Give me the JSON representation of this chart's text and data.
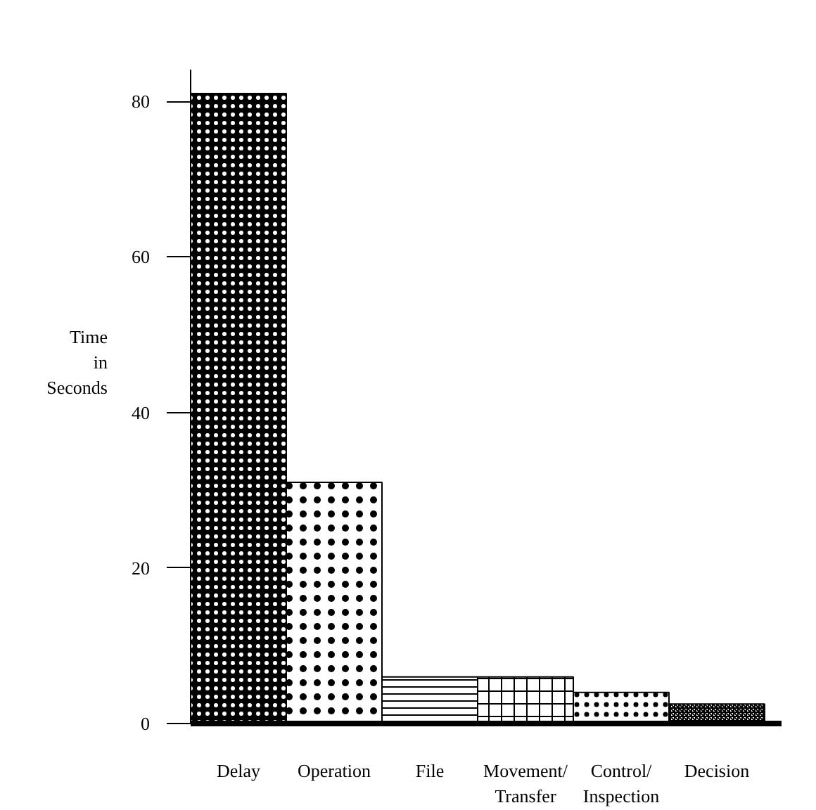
{
  "chart_data": {
    "type": "bar",
    "categories": [
      "Delay",
      "Operation",
      "File",
      "Movement/ Transfer",
      "Control/ Inspection",
      "Decision"
    ],
    "values": [
      81,
      31,
      6,
      6,
      4,
      2.5
    ],
    "colors": [
      "#000000",
      "#ffffff",
      "#ffffff",
      "#ffffff",
      "#ffffff",
      "#ffffff"
    ],
    "ylabel": "Time in Seconds",
    "ylim": [
      0,
      84
    ],
    "yticks": [
      0,
      20,
      40,
      60,
      80
    ],
    "grid": false
  }
}
